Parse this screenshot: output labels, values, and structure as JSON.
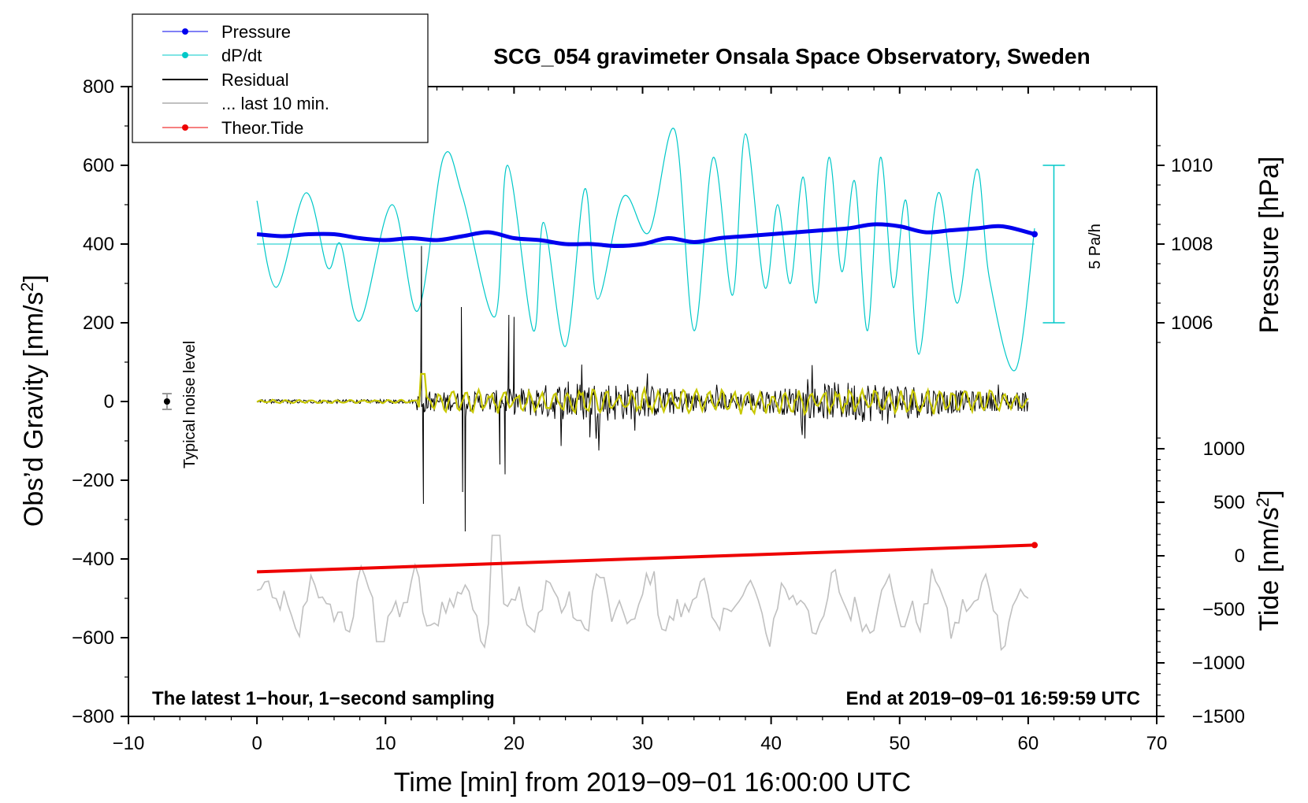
{
  "chart_data": {
    "type": "line",
    "title": "SCG_054 gravimeter Onsala Space Observatory, Sweden",
    "xlabel": "Time [min] from 2019−09−01 16:00:00 UTC",
    "ylabel_left": "Obs’d Gravity [nm/s²]",
    "ylabel_left_parts": [
      "Obs’d Gravity [nm/s",
      "2",
      "]"
    ],
    "ylabel_right_pressure": "Pressure [hPa]",
    "ylabel_right_tide": "Tide [nm/s²]",
    "ylabel_right_tide_parts": [
      "Tide [nm/s",
      "2",
      "]"
    ],
    "xlim": [
      -10,
      70
    ],
    "ylim_left": [
      -800,
      800
    ],
    "x_ticks": [
      -10,
      0,
      10,
      20,
      30,
      40,
      50,
      60,
      70
    ],
    "x_tick_labels": [
      "−10",
      "0",
      "10",
      "20",
      "30",
      "40",
      "50",
      "60",
      "70"
    ],
    "y_ticks_left": [
      -800,
      -600,
      -400,
      -200,
      0,
      200,
      400,
      600,
      800
    ],
    "y_tick_labels_left": [
      "−800",
      "−600",
      "−400",
      "−200",
      "0",
      "200",
      "400",
      "600",
      "800"
    ],
    "pressure_axis": {
      "ticks": [
        1006,
        1008,
        1010
      ],
      "tick_labels": [
        "1006",
        "1008",
        "1010"
      ],
      "left_equiv": [
        200,
        400,
        600
      ]
    },
    "tide_axis": {
      "ticks": [
        -1500,
        -1000,
        -500,
        0,
        500,
        1000
      ],
      "tick_labels": [
        "−1500",
        "−1000",
        "−500",
        "0",
        "500",
        "1000"
      ],
      "left_equiv": [
        -800,
        -664,
        -528,
        -392,
        -256,
        -120
      ]
    },
    "legend": [
      {
        "label": "Pressure",
        "color": "#0000ee",
        "marker": true
      },
      {
        "label": "dP/dt",
        "color": "#00c8c8",
        "marker": true
      },
      {
        "label": "Residual",
        "color": "#000000",
        "marker": false
      },
      {
        "label": "... last 10 min.",
        "color": "#c0c0c0",
        "marker": false
      },
      {
        "label": "Theor.Tide",
        "color": "#ee0000",
        "marker": true
      }
    ],
    "notes": {
      "left": "The latest 1−hour, 1−second sampling",
      "right": "End at 2019−09−01 16:59:59 UTC",
      "noise": "Typical noise level",
      "scale_bar": "5 Pa/h"
    },
    "noise_marker": {
      "x": -7,
      "y": 0,
      "err": 20
    },
    "scale_bar": {
      "x": 62,
      "y_top": 600,
      "y_bottom": 200
    },
    "colors": {
      "pressure": "#0000ee",
      "dpdt": "#00c8c8",
      "residual": "#000000",
      "filtered": "#c8c800",
      "last10": "#c0c0c0",
      "tide": "#ee0000"
    },
    "series": [
      {
        "name": "Pressure",
        "axis": "pressure_hPa",
        "x": [
          0,
          2,
          4,
          6,
          8,
          10,
          12,
          14,
          16,
          18,
          20,
          22,
          24,
          26,
          28,
          30,
          32,
          34,
          36,
          38,
          40,
          42,
          44,
          46,
          48,
          50,
          52,
          54,
          56,
          58,
          60.5
        ],
        "y": [
          1008.25,
          1008.2,
          1008.25,
          1008.25,
          1008.15,
          1008.1,
          1008.15,
          1008.1,
          1008.2,
          1008.3,
          1008.15,
          1008.1,
          1008.0,
          1008.0,
          1007.95,
          1008.0,
          1008.15,
          1008.05,
          1008.15,
          1008.2,
          1008.25,
          1008.3,
          1008.35,
          1008.4,
          1008.5,
          1008.45,
          1008.3,
          1008.35,
          1008.4,
          1008.45,
          1008.25
        ]
      },
      {
        "name": "dP/dt",
        "axis": "gravity_nm_s2",
        "x": [
          0,
          1.5,
          3.8,
          5.5,
          6.5,
          8.0,
          10.5,
          12.5,
          14.5,
          16.0,
          18.5,
          19.5,
          21.5,
          22.3,
          24.0,
          25.5,
          26.5,
          28.5,
          30.5,
          32.5,
          34.0,
          35.5,
          37.0,
          38.0,
          39.5,
          40.5,
          41.5,
          42.5,
          43.5,
          44.5,
          45.5,
          46.5,
          47.5,
          48.5,
          49.5,
          50.5,
          51.5,
          53.0,
          54.5,
          56.0,
          57.0,
          59.0,
          60.5
        ],
        "y": [
          510,
          290,
          530,
          340,
          400,
          205,
          500,
          230,
          620,
          520,
          215,
          600,
          180,
          455,
          140,
          540,
          260,
          520,
          430,
          690,
          180,
          620,
          270,
          680,
          290,
          500,
          300,
          570,
          250,
          620,
          330,
          560,
          180,
          620,
          290,
          510,
          120,
          530,
          250,
          590,
          310,
          80,
          440
        ]
      },
      {
        "name": "Theor.Tide",
        "axis": "tide_nm_s2",
        "x": [
          0,
          60.5
        ],
        "y": [
          -150,
          100
        ]
      }
    ]
  }
}
